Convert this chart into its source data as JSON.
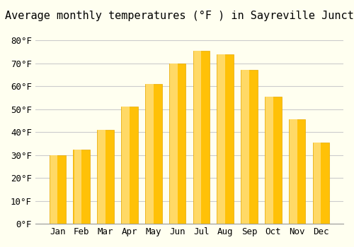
{
  "title": "Average monthly temperatures (°F ) in Sayreville Junction",
  "months": [
    "Jan",
    "Feb",
    "Mar",
    "Apr",
    "May",
    "Jun",
    "Jul",
    "Aug",
    "Sep",
    "Oct",
    "Nov",
    "Dec"
  ],
  "values": [
    30,
    32.5,
    41,
    51,
    61,
    70,
    75.5,
    74,
    67,
    55.5,
    45.5,
    35.5
  ],
  "bar_color_gradient_top": "#FFC107",
  "bar_color_gradient_bottom": "#FFD966",
  "bar_edge_color": "#E6A800",
  "background_color": "#FFFFF0",
  "grid_color": "#CCCCCC",
  "title_fontsize": 11,
  "tick_fontsize": 9,
  "ylim": [
    0,
    85
  ],
  "yticks": [
    0,
    10,
    20,
    30,
    40,
    50,
    60,
    70,
    80
  ],
  "ytick_labels": [
    "0°F",
    "10°F",
    "20°F",
    "30°F",
    "40°F",
    "50°F",
    "60°F",
    "70°F",
    "80°F"
  ]
}
